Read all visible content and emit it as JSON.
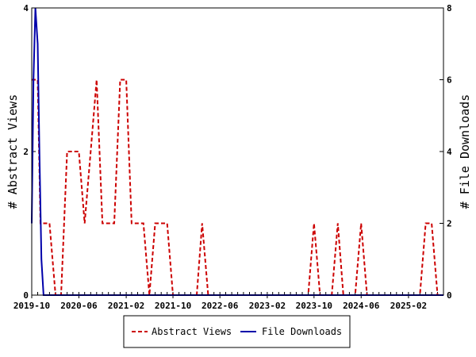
{
  "chart_data": {
    "type": "line",
    "title": "",
    "xlabel": "",
    "ylabel": "# Abstract Views",
    "y2label": "# File Downloads",
    "x_tick_labels": [
      "2019-10",
      "2020-06",
      "2021-02",
      "2021-10",
      "2022-06",
      "2023-02",
      "2023-10",
      "2024-06",
      "2025-02"
    ],
    "y_ticks": [
      "0",
      "2",
      "4"
    ],
    "y2_ticks": [
      "0",
      "2",
      "4",
      "6",
      "8"
    ],
    "ylim": [
      0,
      4
    ],
    "y2lim": [
      0,
      8
    ],
    "xlim": [
      "2019-10-01",
      "2025-08-01"
    ],
    "legend_position": "bottom",
    "grid": false,
    "series": [
      {
        "name": "Abstract Views",
        "axis": "left",
        "color": "#cc0000",
        "style": "dashed",
        "points": [
          [
            "2019-10-01",
            3
          ],
          [
            "2019-11-01",
            3
          ],
          [
            "2019-11-15",
            1
          ],
          [
            "2019-12-01",
            1
          ],
          [
            "2020-01-01",
            1
          ],
          [
            "2020-02-01",
            0
          ],
          [
            "2020-03-01",
            0
          ],
          [
            "2020-04-01",
            2
          ],
          [
            "2020-05-01",
            2
          ],
          [
            "2020-06-01",
            2
          ],
          [
            "2020-07-01",
            1
          ],
          [
            "2020-08-01",
            2
          ],
          [
            "2020-09-01",
            3
          ],
          [
            "2020-10-01",
            1
          ],
          [
            "2020-11-01",
            1
          ],
          [
            "2020-12-01",
            1
          ],
          [
            "2021-01-01",
            3
          ],
          [
            "2021-02-01",
            3
          ],
          [
            "2021-03-01",
            1
          ],
          [
            "2021-04-01",
            1
          ],
          [
            "2021-05-01",
            1
          ],
          [
            "2021-06-01",
            0
          ],
          [
            "2021-07-01",
            1
          ],
          [
            "2021-08-01",
            1
          ],
          [
            "2021-09-01",
            1
          ],
          [
            "2021-10-01",
            0
          ],
          [
            "2021-11-01",
            0
          ],
          [
            "2022-01-01",
            0
          ],
          [
            "2022-02-01",
            0
          ],
          [
            "2022-03-01",
            1
          ],
          [
            "2022-04-01",
            0
          ],
          [
            "2023-09-01",
            0
          ],
          [
            "2023-10-01",
            1
          ],
          [
            "2023-11-01",
            0
          ],
          [
            "2024-01-01",
            0
          ],
          [
            "2024-02-01",
            1
          ],
          [
            "2024-03-01",
            0
          ],
          [
            "2024-05-01",
            0
          ],
          [
            "2024-06-01",
            1
          ],
          [
            "2024-07-01",
            0
          ],
          [
            "2025-04-01",
            0
          ],
          [
            "2025-05-01",
            1
          ],
          [
            "2025-06-01",
            1
          ],
          [
            "2025-07-01",
            0
          ]
        ]
      },
      {
        "name": "File Downloads",
        "axis": "right",
        "color": "#0000aa",
        "style": "solid",
        "points": [
          [
            "2019-10-01",
            2
          ],
          [
            "2019-10-10",
            6
          ],
          [
            "2019-10-20",
            8
          ],
          [
            "2019-11-01",
            7
          ],
          [
            "2019-11-10",
            4
          ],
          [
            "2019-11-20",
            1
          ],
          [
            "2019-12-01",
            0
          ],
          [
            "2025-08-01",
            0
          ]
        ]
      }
    ]
  },
  "legend": {
    "series1_label": "Abstract Views",
    "series2_label": "File Downloads"
  }
}
